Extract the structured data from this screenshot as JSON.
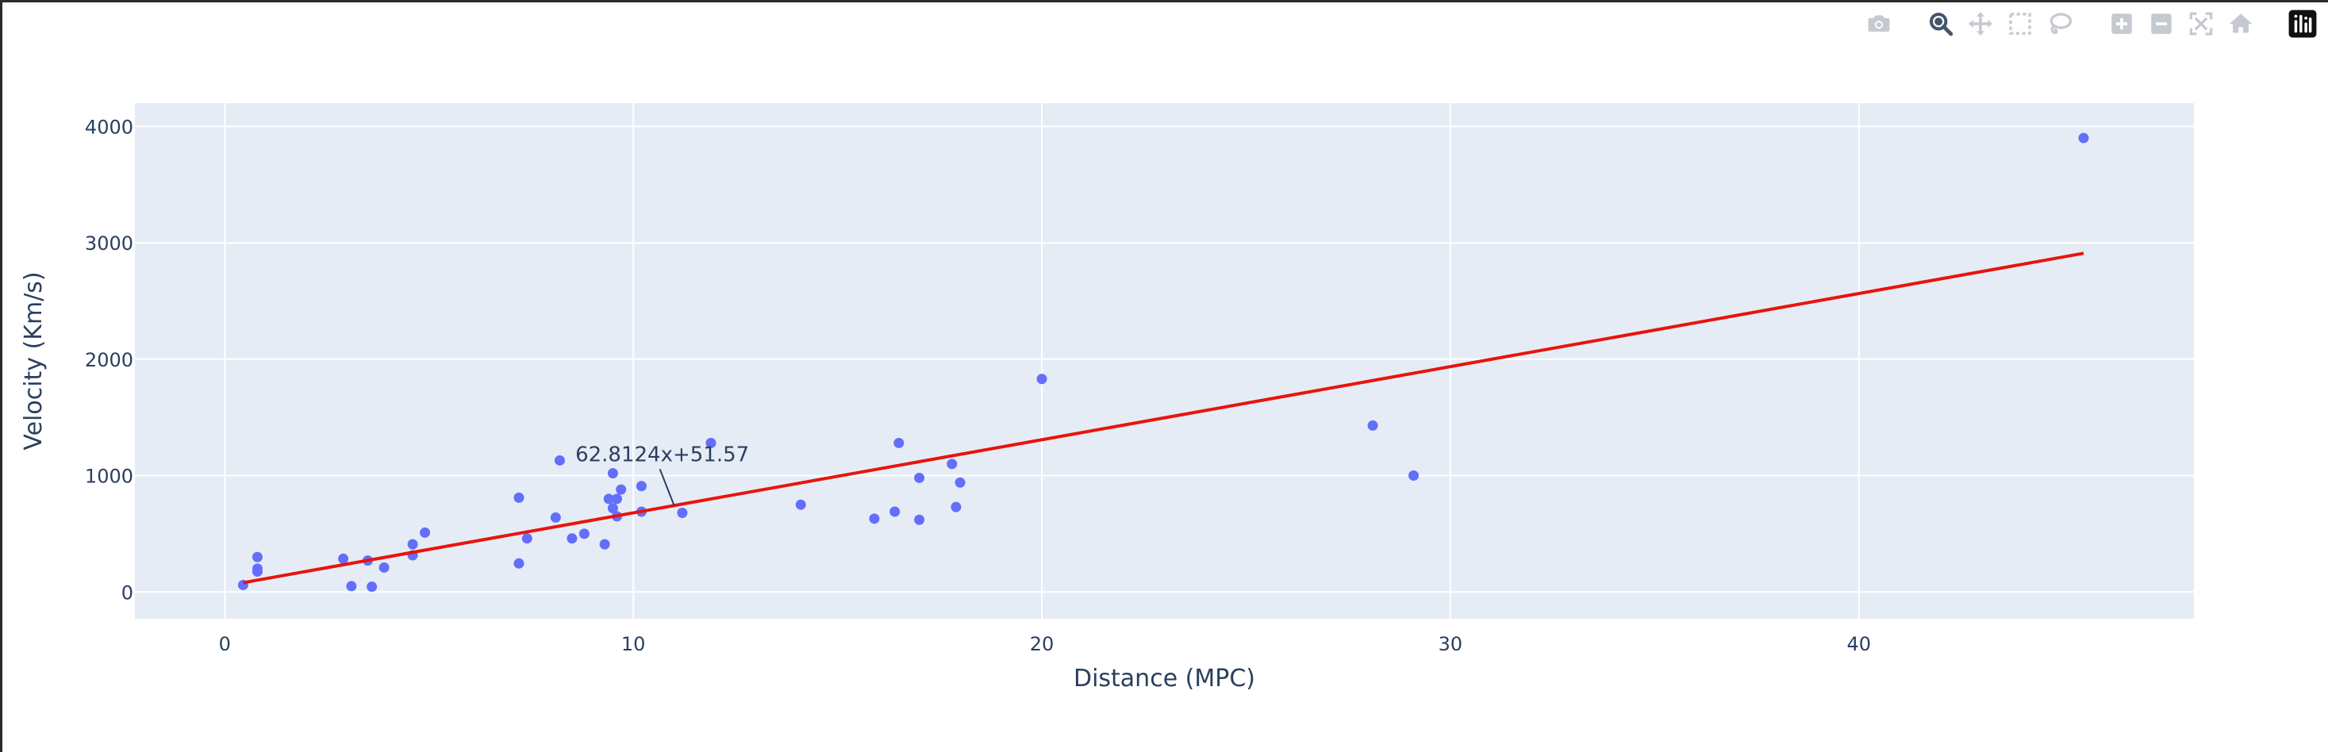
{
  "chart_data": {
    "type": "scatter",
    "xlabel": "Distance (MPC)",
    "ylabel": "Velocity (Km/s)",
    "xlim": [
      -2.2,
      48.2
    ],
    "ylim": [
      -230,
      4200
    ],
    "xticks": [
      0,
      10,
      20,
      30,
      40
    ],
    "yticks": [
      0,
      1000,
      2000,
      3000,
      4000
    ],
    "grid": true,
    "series": [
      {
        "mode": "markers",
        "color": "#636efa",
        "x": [
          0.45,
          0.8,
          0.8,
          0.8,
          2.9,
          3.1,
          3.5,
          3.6,
          3.9,
          4.6,
          4.6,
          4.9,
          7.2,
          7.2,
          7.4,
          8.1,
          8.2,
          8.5,
          8.8,
          9.3,
          9.4,
          9.5,
          9.5,
          9.6,
          9.6,
          9.7,
          10.2,
          10.2,
          11.2,
          11.9,
          14.1,
          15.9,
          16.4,
          16.5,
          17.0,
          17.0,
          17.8,
          17.9,
          18.0,
          20.0,
          28.1,
          29.1,
          45.5
        ],
        "y": [
          60,
          300,
          200,
          175,
          285,
          50,
          270,
          45,
          210,
          410,
          315,
          510,
          810,
          245,
          460,
          640,
          1130,
          460,
          500,
          410,
          800,
          1020,
          720,
          650,
          800,
          880,
          910,
          690,
          680,
          1280,
          750,
          630,
          690,
          1280,
          980,
          620,
          1100,
          730,
          940,
          1830,
          1430,
          1000,
          3900
        ]
      },
      {
        "mode": "line",
        "color": "#e8140c",
        "x": [
          0.45,
          45.5
        ],
        "y": [
          79.8,
          2909.6
        ]
      }
    ],
    "annotations": [
      {
        "text": "62.8124x+51.57",
        "x": 11.0,
        "y": 742.5
      }
    ]
  },
  "modebar": {
    "icons": [
      {
        "name": "camera-icon",
        "color": "#c5c9d0"
      },
      {
        "name": "zoom-icon",
        "color": "#44546a"
      },
      {
        "name": "pan-icon",
        "color": "#c5c9d0"
      },
      {
        "name": "box-select-icon",
        "color": "#c5c9d0"
      },
      {
        "name": "lasso-select-icon",
        "color": "#c5c9d0"
      },
      {
        "name": "zoom-in-icon",
        "color": "#c5c9d0"
      },
      {
        "name": "zoom-out-icon",
        "color": "#c5c9d0"
      },
      {
        "name": "autoscale-icon",
        "color": "#c5c9d0"
      },
      {
        "name": "reset-axes-icon",
        "color": "#c5c9d0"
      },
      {
        "name": "plotly-logo-icon",
        "color": "#111111"
      }
    ]
  },
  "colors": {
    "plot_bg": "#e5ecf6",
    "grid": "#ffffff",
    "text": "#2a3f5f"
  }
}
